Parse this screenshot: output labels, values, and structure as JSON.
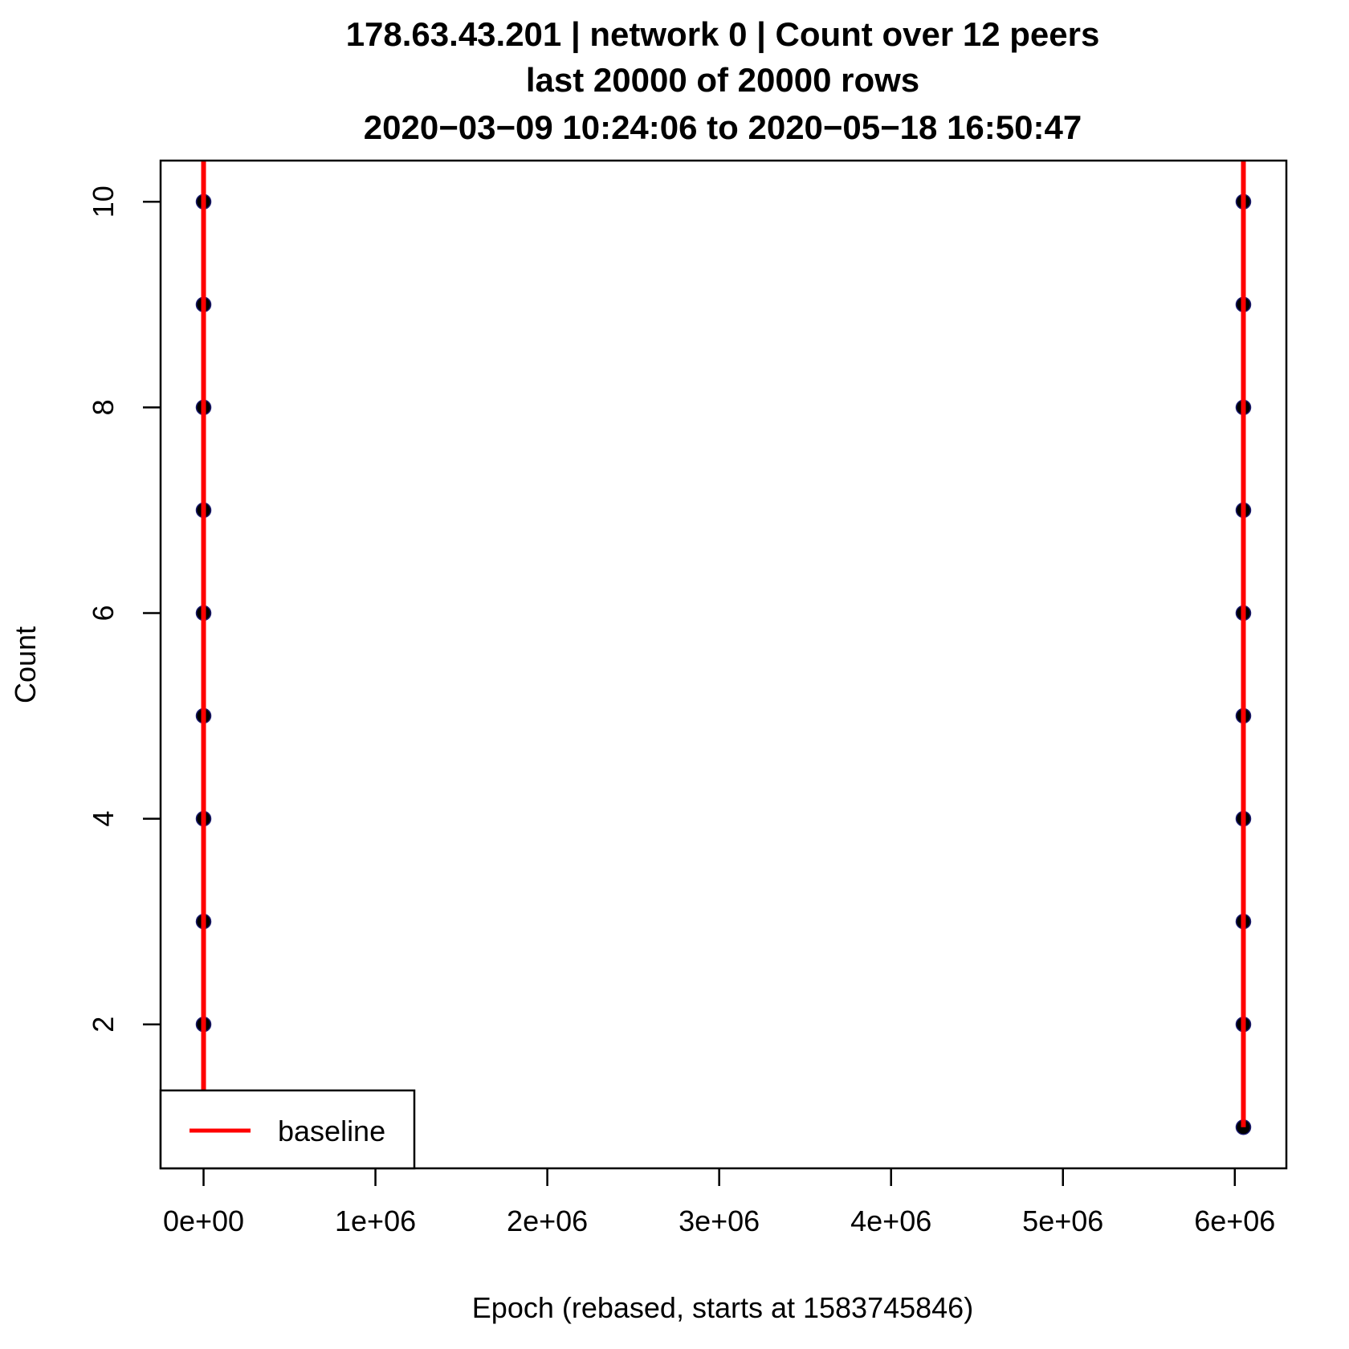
{
  "chart_data": {
    "type": "scatter",
    "title_lines": [
      "178.63.43.201 | network 0 | Count over 12 peers",
      "last 20000 of 20000 rows",
      "2020−03−09 10:24:06 to 2020−05−18 16:50:47"
    ],
    "xlabel": "Epoch (rebased, starts at 1583745846)",
    "ylabel": "Count",
    "xlim": [
      -250000,
      6300000
    ],
    "ylim": [
      0.6,
      10.4
    ],
    "x_ticks": [
      0,
      1000000,
      2000000,
      3000000,
      4000000,
      5000000,
      6000000
    ],
    "x_tick_labels": [
      "0e+00",
      "1e+06",
      "2e+06",
      "3e+06",
      "4e+06",
      "5e+06",
      "6e+06"
    ],
    "y_ticks": [
      2,
      4,
      6,
      8,
      10
    ],
    "y_tick_labels": [
      "2",
      "4",
      "6",
      "8",
      "10"
    ],
    "grid": false,
    "legend": {
      "position": "bottom-left",
      "entries": [
        {
          "label": "baseline",
          "color": "#ff0000"
        }
      ]
    },
    "series": [
      {
        "name": "",
        "kind": "points",
        "color": "#000000",
        "points": [
          [
            0,
            1
          ],
          [
            0,
            2
          ],
          [
            0,
            3
          ],
          [
            0,
            4
          ],
          [
            0,
            5
          ],
          [
            0,
            6
          ],
          [
            0,
            7
          ],
          [
            0,
            8
          ],
          [
            0,
            9
          ],
          [
            0,
            10
          ],
          [
            6050000,
            1
          ],
          [
            6050000,
            2
          ],
          [
            6050000,
            3
          ],
          [
            6050000,
            4
          ],
          [
            6050000,
            5
          ],
          [
            6050000,
            6
          ],
          [
            6050000,
            7
          ],
          [
            6050000,
            8
          ],
          [
            6050000,
            9
          ],
          [
            6050000,
            10
          ]
        ]
      },
      {
        "name": "baseline",
        "kind": "lines",
        "color": "#ff0000",
        "segments": [
          [
            [
              0,
              1
            ],
            [
              0,
              10.4
            ]
          ],
          [
            [
              6050000,
              1
            ],
            [
              6050000,
              10.4
            ]
          ]
        ]
      }
    ]
  }
}
